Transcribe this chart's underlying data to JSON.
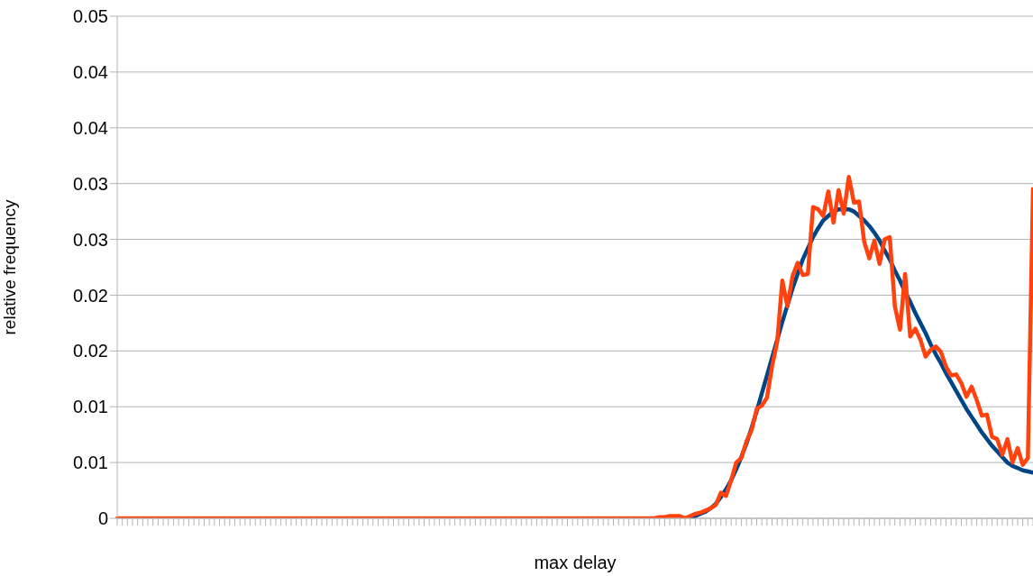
{
  "chart_data": {
    "type": "line",
    "xlabel": "max delay",
    "ylabel": "relative frequency",
    "categories": [
      null,
      null,
      null,
      null,
      null,
      null,
      null,
      null,
      null,
      null,
      null,
      null,
      null,
      null,
      null,
      null,
      null,
      null,
      null,
      null,
      null,
      null,
      null,
      null,
      null,
      null,
      null,
      null,
      null,
      null,
      null,
      null,
      null,
      null,
      null,
      null,
      null,
      null,
      null,
      null,
      null,
      null,
      null,
      null,
      null,
      null,
      null,
      null,
      null,
      null,
      null,
      null,
      null,
      null,
      null,
      null,
      null,
      null,
      null,
      null,
      null,
      null,
      null,
      null,
      null,
      null,
      null,
      null,
      null,
      null,
      null,
      null,
      null,
      null,
      null,
      null,
      null,
      null,
      null,
      null,
      null,
      null,
      null,
      null,
      null,
      null,
      null,
      null,
      null,
      null,
      null,
      null,
      null,
      null,
      null,
      null,
      null,
      null,
      null,
      null,
      null,
      null,
      null,
      null,
      null,
      null,
      null,
      null,
      null,
      null,
      null,
      null,
      null,
      null,
      null,
      null,
      null,
      null,
      null,
      null,
      null,
      null,
      null,
      null,
      null,
      null,
      null,
      null,
      null,
      null,
      null,
      null,
      null,
      null,
      null,
      null,
      null,
      null,
      null,
      null,
      null,
      null,
      null,
      null,
      null,
      null,
      null,
      null,
      null,
      null,
      null,
      null,
      null,
      null,
      null,
      null,
      null,
      null,
      null,
      null,
      null,
      null,
      null,
      null,
      null,
      null,
      null,
      null,
      null,
      null,
      null,
      null,
      null,
      null,
      null,
      null,
      null,
      null,
      null,
      null
    ],
    "ylim": [
      0,
      0.045
    ],
    "yticks": [
      0,
      {
        "value": 0.005,
        "label": "0.01"
      },
      0.01,
      {
        "value": 0.015,
        "label": "0.02"
      },
      0.02,
      {
        "value": 0.025,
        "label": "0.03"
      },
      0.03,
      {
        "value": 0.035,
        "label": "0.04"
      },
      0.04,
      {
        "value": 0.045,
        "label": "0.05"
      }
    ],
    "grid": "y",
    "legend": false,
    "marker": "none",
    "line_style": "solid",
    "series": [
      {
        "type": "line",
        "color": "#004586",
        "values": [
          null,
          null,
          null,
          null,
          null,
          null,
          null,
          null,
          null,
          null,
          null,
          null,
          null,
          null,
          null,
          null,
          null,
          null,
          null,
          null,
          null,
          null,
          null,
          null,
          null,
          null,
          null,
          null,
          null,
          null,
          null,
          null,
          null,
          null,
          null,
          null,
          null,
          null,
          null,
          null,
          null,
          null,
          null,
          null,
          null,
          null,
          null,
          null,
          null,
          null,
          null,
          null,
          null,
          null,
          null,
          null,
          null,
          null,
          null,
          null,
          null,
          null,
          null,
          null,
          null,
          null,
          null,
          null,
          null,
          null,
          null,
          null,
          null,
          null,
          null,
          null,
          null,
          null,
          null,
          null,
          null,
          null,
          null,
          null,
          null,
          null,
          null,
          null,
          null,
          null,
          null,
          null,
          null,
          null,
          null,
          null,
          null,
          null,
          null,
          null,
          null,
          null,
          null,
          null,
          null,
          null,
          null,
          null,
          null,
          null,
          null,
          null,
          0.0001,
          0.0002,
          0.0004,
          0.0006,
          0.0009,
          0.0013,
          0.0019,
          0.0026,
          0.0034,
          0.0044,
          0.0055,
          0.0067,
          0.0081,
          0.0096,
          0.0112,
          0.0128,
          0.0144,
          0.016,
          0.0176,
          0.0191,
          0.0206,
          0.0219,
          0.0232,
          0.0242,
          0.0252,
          0.026,
          0.0267,
          0.0271,
          0.0275,
          0.0277,
          0.0277,
          0.0277,
          0.0275,
          0.0271,
          0.0267,
          0.0262,
          0.0256,
          0.0249,
          0.024,
          0.0232,
          0.0222,
          0.0213,
          0.0203,
          0.0194,
          0.0184,
          0.0175,
          0.0166,
          0.0156,
          0.0147,
          0.0139,
          0.013,
          0.0122,
          0.0114,
          0.0106,
          0.0098,
          0.0091,
          0.0084,
          0.0077,
          0.0071,
          0.0065,
          0.006,
          0.0055,
          0.005,
          0.0047,
          0.0045,
          0.0043,
          0.0042,
          0.0041
        ]
      },
      {
        "type": "line",
        "color": "#ff420e",
        "values": [
          0,
          0,
          0,
          0,
          0,
          0,
          0,
          0,
          0,
          0,
          0,
          0,
          0,
          0,
          0,
          0,
          0,
          0,
          0,
          0,
          0,
          0,
          0,
          0,
          0,
          0,
          0,
          0,
          0,
          0,
          0,
          0,
          0,
          0,
          0,
          0,
          0,
          0,
          0,
          0,
          0,
          0,
          0,
          0,
          0,
          0,
          0,
          0,
          0,
          0,
          0,
          0,
          0,
          0,
          0,
          0,
          0,
          0,
          0,
          0,
          0,
          0,
          0,
          0,
          0,
          0,
          0,
          0,
          0,
          0,
          0,
          0,
          0,
          0,
          0,
          0,
          0,
          0,
          0,
          0,
          0,
          0,
          0,
          0,
          0,
          0,
          0,
          0,
          0,
          0,
          0,
          0,
          0,
          0,
          0,
          0,
          0,
          0,
          0,
          0,
          0,
          0,
          0,
          0,
          0,
          0,
          0.0001,
          0.0001,
          0.0002,
          0.0002,
          0.0002,
          0,
          0.0002,
          0.0004,
          0.0005,
          0.0007,
          0.0009,
          0.0012,
          0.0023,
          0.002,
          0.0034,
          0.005,
          0.0054,
          0.0069,
          0.0079,
          0.0098,
          0.0101,
          0.0108,
          0.0136,
          0.0158,
          0.0213,
          0.019,
          0.0217,
          0.0229,
          0.0218,
          0.0219,
          0.0279,
          0.0277,
          0.0271,
          0.0293,
          0.0265,
          0.0294,
          0.0273,
          0.0306,
          0.0283,
          0.0284,
          0.0248,
          0.0233,
          0.0249,
          0.0228,
          0.025,
          0.0252,
          0.019,
          0.0169,
          0.0219,
          0.0163,
          0.017,
          0.016,
          0.0145,
          0.0151,
          0.0154,
          0.0149,
          0.0136,
          0.0128,
          0.0129,
          0.0121,
          0.0109,
          0.0118,
          0.0106,
          0.0092,
          0.0093,
          0.0073,
          0.0071,
          0.0057,
          0.0071,
          0.005,
          0.0063,
          0.0048,
          0.0054,
          0.0295
        ]
      }
    ]
  }
}
